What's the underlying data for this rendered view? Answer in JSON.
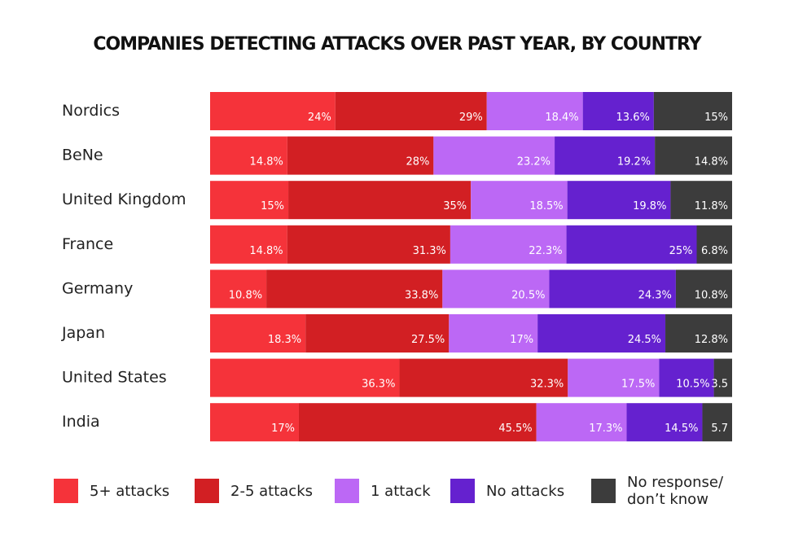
{
  "chart_data": {
    "type": "bar",
    "orientation": "horizontal",
    "stacked": true,
    "title": "COMPANIES DETECTING ATTACKS OVER PAST YEAR, BY COUNTRY",
    "categories": [
      "Nordics",
      "BeNe",
      "United Kingdom",
      "France",
      "Germany",
      "Japan",
      "United States",
      "India"
    ],
    "series": [
      {
        "name": "5+ attacks",
        "color": "#f5333a",
        "values": [
          24,
          14.8,
          15,
          14.8,
          10.8,
          18.3,
          36.3,
          17
        ],
        "labels": [
          "24%",
          "14.8%",
          "15%",
          "14.8%",
          "10.8%",
          "18.3%",
          "36.3%",
          "17%"
        ]
      },
      {
        "name": "2-5 attacks",
        "color": "#d21f23",
        "values": [
          29,
          28,
          35,
          31.3,
          33.8,
          27.5,
          32.3,
          45.5
        ],
        "labels": [
          "29%",
          "28%",
          "35%",
          "31.3%",
          "33.8%",
          "27.5%",
          "32.3%",
          "45.5%"
        ]
      },
      {
        "name": "1 attack",
        "color": "#bc68f5",
        "values": [
          18.4,
          23.2,
          18.5,
          22.3,
          20.5,
          17,
          17.5,
          17.3
        ],
        "labels": [
          "18.4%",
          "23.2%",
          "18.5%",
          "22.3%",
          "20.5%",
          "17%",
          "17.5%",
          "17.3%"
        ]
      },
      {
        "name": "No attacks",
        "color": "#6521cf",
        "values": [
          13.6,
          19.2,
          19.8,
          25,
          24.3,
          24.5,
          10.5,
          14.5
        ],
        "labels": [
          "13.6%",
          "19.2%",
          "19.8%",
          "25%",
          "24.3%",
          "24.5%",
          "10.5%",
          "14.5%"
        ]
      },
      {
        "name": "No response/ don’t know",
        "color": "#3c3c3c",
        "values": [
          15,
          14.8,
          11.8,
          6.8,
          10.8,
          12.8,
          3.5,
          5.7
        ],
        "labels": [
          "15%",
          "14.8%",
          "11.8%",
          "6.8%",
          "10.8%",
          "12.8%",
          "3.5",
          "5.7"
        ]
      }
    ],
    "legend": {
      "position": "bottom",
      "labels": [
        "5+ attacks",
        "2-5 attacks",
        "1 attack",
        "No attacks",
        "No response/\ndon’t know"
      ]
    },
    "grid": false
  }
}
